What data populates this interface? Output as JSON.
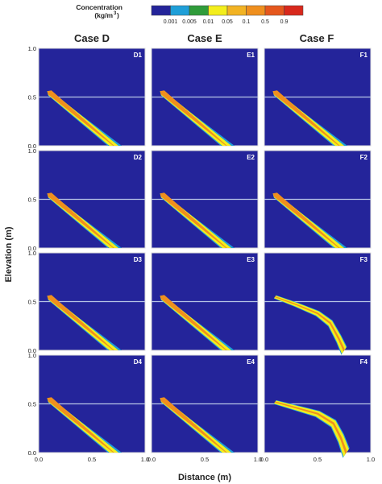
{
  "chart_data": {
    "type": "heatmap",
    "legend": {
      "title_line1": "Concentration",
      "title_line2": "(kg/m",
      "title_sup": "3",
      "title_close": ")",
      "levels": [
        "0.001",
        "0.005",
        "0.01",
        "0.05",
        "0.1",
        "0.5",
        "0.9"
      ],
      "colors": [
        "#24249a",
        "#1f9fd8",
        "#2f9c3a",
        "#f3ee1c",
        "#f2b323",
        "#ef8f1e",
        "#e5571d",
        "#d8281c"
      ]
    },
    "columns": [
      "Case D",
      "Case E",
      "Case F"
    ],
    "panel_labels": [
      [
        "D1",
        "E1",
        "F1"
      ],
      [
        "D2",
        "E2",
        "F2"
      ],
      [
        "D3",
        "E3",
        "F3"
      ],
      [
        "D4",
        "E4",
        "F4"
      ]
    ],
    "xlabel": "Distance (m)",
    "ylabel": "Elevation (m)",
    "xlim": [
      0,
      1
    ],
    "ylim": [
      0,
      1
    ],
    "x_ticks": [
      "0.0",
      "0.5",
      "1.0"
    ],
    "y_ticks": [
      "0.0",
      "0.5",
      "1.0"
    ],
    "reference_line_elevation": 0.5,
    "plume": {
      "source": [
        0.1,
        0.55
      ],
      "straight_end_x": 0.68,
      "curved_F3": [
        [
          0.1,
          0.55
        ],
        [
          0.3,
          0.47
        ],
        [
          0.5,
          0.38
        ],
        [
          0.62,
          0.28
        ],
        [
          0.7,
          0.12
        ],
        [
          0.75,
          0
        ]
      ],
      "curved_F4": [
        [
          0.1,
          0.52
        ],
        [
          0.3,
          0.46
        ],
        [
          0.5,
          0.4
        ],
        [
          0.65,
          0.3
        ],
        [
          0.72,
          0.15
        ],
        [
          0.77,
          0
        ]
      ]
    }
  }
}
